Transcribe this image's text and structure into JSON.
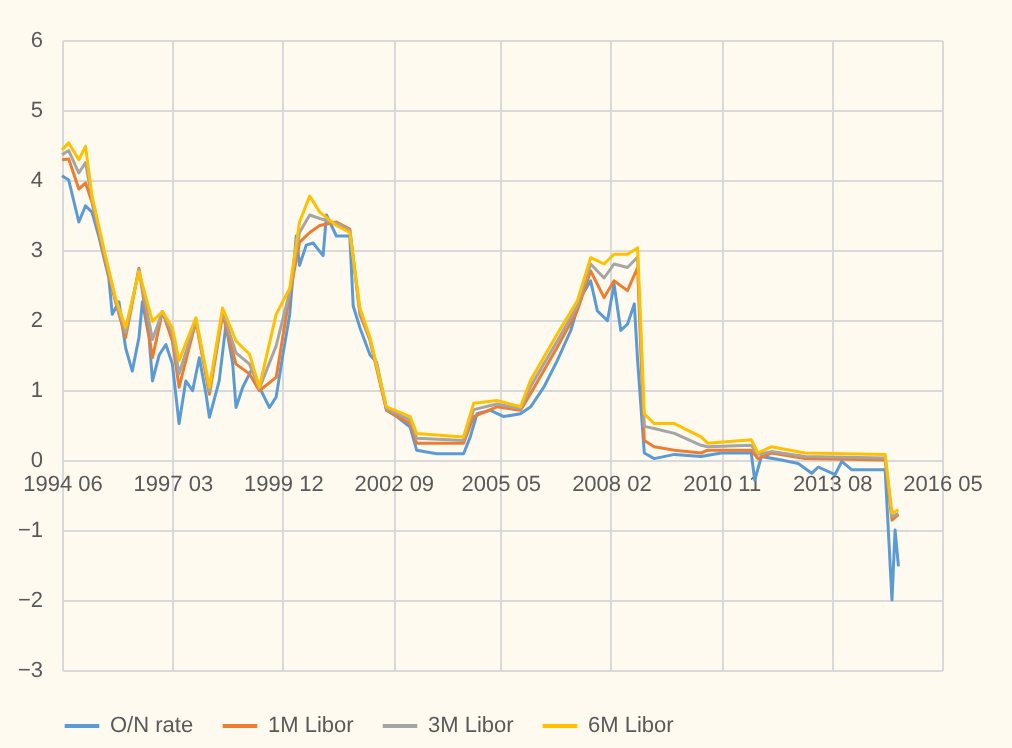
{
  "chart_data": {
    "type": "line",
    "xlim": [
      "1994-06",
      "2016-05"
    ],
    "xticks": [
      {
        "value": "1994-06",
        "label": "1994 06"
      },
      {
        "value": "1997-03",
        "label": "1997 03"
      },
      {
        "value": "1999-12",
        "label": "1999 12"
      },
      {
        "value": "2002-09",
        "label": "2002 09"
      },
      {
        "value": "2005-05",
        "label": "2005 05"
      },
      {
        "value": "2008-02",
        "label": "2008 02"
      },
      {
        "value": "2010-11",
        "label": "2010 11"
      },
      {
        "value": "2013-08",
        "label": "2013 08"
      },
      {
        "value": "2016-05",
        "label": "2016 05"
      }
    ],
    "ylim": [
      -3,
      6
    ],
    "yticks": [
      -3,
      -2,
      -1,
      0,
      1,
      2,
      3,
      4,
      5,
      6
    ],
    "grid": true,
    "legend": "bottom",
    "marker": "none",
    "line_style": "solid",
    "series": [
      {
        "name": "O/N rate",
        "color": "#5b9bd5",
        "x": [
          "1994-06",
          "1994-08",
          "1994-11",
          "1995-01",
          "1995-03",
          "1995-05",
          "1995-08",
          "1995-09",
          "1995-11",
          "1996-01",
          "1996-03",
          "1996-05",
          "1996-06",
          "1996-08",
          "1996-09",
          "1996-11",
          "1997-01",
          "1997-03",
          "1997-05",
          "1997-07",
          "1997-09",
          "1997-11",
          "1998-01",
          "1998-02",
          "1998-05",
          "1998-07",
          "1998-09",
          "1998-10",
          "1998-12",
          "1999-03",
          "1999-05",
          "1999-08",
          "1999-10",
          "1999-12",
          "2000-02",
          "2000-04",
          "2000-05",
          "2000-07",
          "2000-09",
          "2000-12",
          "2001-01",
          "2001-04",
          "2001-08",
          "2001-09",
          "2001-11",
          "2002-02",
          "2002-04",
          "2002-07",
          "2002-10",
          "2003-02",
          "2003-04",
          "2003-10",
          "2004-06",
          "2004-08",
          "2004-10",
          "2005-02",
          "2005-06",
          "2005-11",
          "2006-02",
          "2006-06",
          "2006-10",
          "2007-02",
          "2007-05",
          "2007-08",
          "2007-10",
          "2008-01",
          "2008-03",
          "2008-05",
          "2008-07",
          "2008-09",
          "2008-10",
          "2008-12",
          "2009-03",
          "2009-09",
          "2010-05",
          "2010-11",
          "2011-08",
          "2011-09",
          "2011-11",
          "2012-05",
          "2012-10",
          "2013-02",
          "2013-04",
          "2013-09",
          "2013-11",
          "2014-02",
          "2014-12",
          "2015-02",
          "2015-03",
          "2015-04"
        ],
        "values": [
          4.06,
          4.0,
          3.4,
          3.63,
          3.54,
          3.2,
          2.6,
          2.08,
          2.26,
          1.6,
          1.27,
          1.75,
          2.26,
          1.75,
          1.13,
          1.5,
          1.65,
          1.37,
          0.52,
          1.13,
          0.99,
          1.46,
          0.94,
          0.61,
          1.13,
          1.93,
          1.37,
          0.75,
          1.04,
          1.32,
          1.04,
          0.75,
          0.9,
          1.5,
          2.08,
          3.2,
          2.78,
          3.07,
          3.1,
          2.92,
          3.5,
          3.2,
          3.2,
          2.2,
          1.89,
          1.5,
          1.4,
          0.71,
          0.62,
          0.47,
          0.14,
          0.09,
          0.09,
          0.33,
          0.66,
          0.71,
          0.62,
          0.66,
          0.76,
          1.04,
          1.42,
          1.85,
          2.32,
          2.56,
          2.13,
          1.99,
          2.51,
          1.85,
          1.94,
          2.23,
          1.42,
          0.1,
          0.02,
          0.08,
          0.05,
          0.1,
          0.1,
          -0.29,
          0.05,
          0,
          -0.05,
          -0.19,
          -0.1,
          -0.21,
          -0.02,
          -0.14,
          -0.14,
          -2.0,
          -1.0,
          -1.52
        ]
      },
      {
        "name": "1M Libor",
        "color": "#ed7d31",
        "x": [
          "1994-06",
          "1994-08",
          "1994-11",
          "1995-01",
          "1995-03",
          "1995-07",
          "1995-10",
          "1996-01",
          "1996-05",
          "1996-09",
          "1996-12",
          "1997-03",
          "1997-05",
          "1997-10",
          "1998-02",
          "1998-06",
          "1998-10",
          "1999-02",
          "1999-05",
          "1999-10",
          "2000-02",
          "2000-05",
          "2000-08",
          "2000-11",
          "2001-04",
          "2001-08",
          "2001-11",
          "2002-02",
          "2002-07",
          "2003-02",
          "2003-04",
          "2004-06",
          "2004-09",
          "2005-04",
          "2005-11",
          "2006-02",
          "2006-10",
          "2007-04",
          "2007-08",
          "2007-12",
          "2008-03",
          "2008-07",
          "2008-10",
          "2008-12",
          "2009-03",
          "2009-09",
          "2010-05",
          "2010-07",
          "2011-08",
          "2011-10",
          "2012-02",
          "2012-12",
          "2014-12",
          "2015-02",
          "2015-04"
        ],
        "values": [
          4.29,
          4.3,
          3.87,
          3.96,
          3.68,
          2.83,
          2.26,
          1.75,
          2.74,
          1.46,
          2.12,
          1.7,
          1.04,
          1.98,
          0.94,
          2.08,
          1.37,
          1.23,
          0.99,
          1.18,
          2.36,
          3.11,
          3.25,
          3.35,
          3.4,
          3.3,
          2.08,
          1.71,
          0.71,
          0.52,
          0.24,
          0.24,
          0.62,
          0.76,
          0.71,
          0.95,
          1.61,
          2.13,
          2.7,
          2.32,
          2.56,
          2.42,
          2.75,
          0.28,
          0.19,
          0.14,
          0.1,
          0.14,
          0.14,
          0.02,
          0.1,
          0.02,
          0,
          -0.86,
          -0.78
        ]
      },
      {
        "name": "3M Libor",
        "color": "#a5a5a5",
        "x": [
          "1994-06",
          "1994-08",
          "1994-11",
          "1995-01",
          "1995-03",
          "1995-07",
          "1995-10",
          "1996-01",
          "1996-05",
          "1996-09",
          "1996-12",
          "1997-03",
          "1997-05",
          "1997-10",
          "1998-02",
          "1998-06",
          "1998-10",
          "1999-02",
          "1999-05",
          "1999-10",
          "2000-02",
          "2000-05",
          "2000-08",
          "2000-11",
          "2001-04",
          "2001-08",
          "2001-11",
          "2002-02",
          "2002-07",
          "2003-02",
          "2003-04",
          "2004-06",
          "2004-09",
          "2005-04",
          "2005-11",
          "2006-02",
          "2006-10",
          "2007-04",
          "2007-08",
          "2007-12",
          "2008-03",
          "2008-07",
          "2008-10",
          "2008-12",
          "2009-03",
          "2009-09",
          "2010-05",
          "2010-07",
          "2011-08",
          "2011-10",
          "2012-02",
          "2012-12",
          "2014-12",
          "2015-02",
          "2015-04"
        ],
        "values": [
          4.36,
          4.42,
          4.1,
          4.25,
          3.72,
          2.88,
          2.29,
          1.82,
          2.72,
          1.72,
          2.12,
          1.8,
          1.23,
          2.0,
          0.99,
          2.12,
          1.53,
          1.37,
          1.02,
          1.63,
          2.4,
          3.25,
          3.5,
          3.45,
          3.38,
          3.28,
          2.12,
          1.73,
          0.73,
          0.57,
          0.31,
          0.28,
          0.72,
          0.8,
          0.73,
          1.05,
          1.7,
          2.2,
          2.8,
          2.6,
          2.8,
          2.75,
          2.9,
          0.48,
          0.45,
          0.38,
          0.21,
          0.19,
          0.21,
          0.08,
          0.12,
          0.05,
          0.03,
          -0.81,
          -0.76
        ]
      },
      {
        "name": "6M Libor",
        "color": "#ffc000",
        "x": [
          "1994-06",
          "1994-08",
          "1994-11",
          "1995-01",
          "1995-03",
          "1995-07",
          "1995-10",
          "1996-01",
          "1996-05",
          "1996-09",
          "1996-12",
          "1997-03",
          "1997-05",
          "1997-10",
          "1998-02",
          "1998-06",
          "1998-10",
          "1999-02",
          "1999-05",
          "1999-10",
          "2000-02",
          "2000-05",
          "2000-08",
          "2000-11",
          "2001-04",
          "2001-08",
          "2001-11",
          "2002-02",
          "2002-07",
          "2003-02",
          "2003-04",
          "2004-06",
          "2004-09",
          "2005-04",
          "2005-11",
          "2006-02",
          "2006-10",
          "2007-04",
          "2007-08",
          "2007-12",
          "2008-03",
          "2008-07",
          "2008-10",
          "2008-12",
          "2009-03",
          "2009-09",
          "2010-05",
          "2010-07",
          "2011-08",
          "2011-10",
          "2012-02",
          "2012-12",
          "2014-12",
          "2015-02",
          "2015-04"
        ],
        "values": [
          4.43,
          4.53,
          4.29,
          4.48,
          3.77,
          2.92,
          2.31,
          1.89,
          2.69,
          1.98,
          2.12,
          1.89,
          1.42,
          2.03,
          1.04,
          2.17,
          1.7,
          1.51,
          1.04,
          2.08,
          2.45,
          3.4,
          3.77,
          3.54,
          3.35,
          3.25,
          2.17,
          1.75,
          0.76,
          0.62,
          0.38,
          0.33,
          0.81,
          0.85,
          0.76,
          1.14,
          1.8,
          2.27,
          2.89,
          2.8,
          2.94,
          2.94,
          3.03,
          0.66,
          0.52,
          0.52,
          0.33,
          0.24,
          0.29,
          0.1,
          0.19,
          0.1,
          0.08,
          -0.76,
          -0.71
        ]
      }
    ]
  }
}
